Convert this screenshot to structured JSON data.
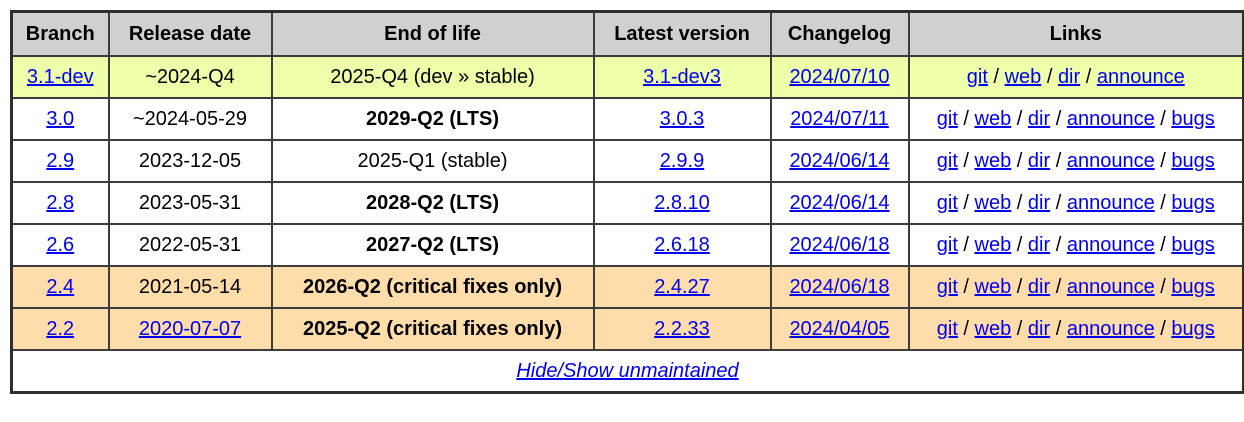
{
  "colors": {
    "header_bg": "#d0d0d0",
    "dev_row_bg": "#eeffaa",
    "stable_row_bg": "#ffffff",
    "unmaintained_row_bg": "#ffddaa",
    "link": "#0000ee",
    "border": "#3c3c3c",
    "text": "#000000"
  },
  "table": {
    "headers": [
      "Branch",
      "Release date",
      "End of life",
      "Latest version",
      "Changelog",
      "Links"
    ],
    "link_separator": " / ",
    "rows": [
      {
        "branch": "3.1-dev",
        "release_date": "~2024-Q4",
        "release_date_is_link": false,
        "end_of_life": "2025-Q4 (dev » stable)",
        "end_of_life_bold": false,
        "latest_version": "3.1-dev3",
        "changelog": "2024/07/10",
        "links": [
          "git",
          "web",
          "dir",
          "announce"
        ],
        "row_style": "dev"
      },
      {
        "branch": "3.0",
        "release_date": "~2024-05-29",
        "release_date_is_link": false,
        "end_of_life": "2029-Q2 (LTS)",
        "end_of_life_bold": true,
        "latest_version": "3.0.3",
        "changelog": "2024/07/11",
        "links": [
          "git",
          "web",
          "dir",
          "announce",
          "bugs"
        ],
        "row_style": "stable"
      },
      {
        "branch": "2.9",
        "release_date": "2023-12-05",
        "release_date_is_link": false,
        "end_of_life": "2025-Q1 (stable)",
        "end_of_life_bold": false,
        "latest_version": "2.9.9",
        "changelog": "2024/06/14",
        "links": [
          "git",
          "web",
          "dir",
          "announce",
          "bugs"
        ],
        "row_style": "stable"
      },
      {
        "branch": "2.8",
        "release_date": "2023-05-31",
        "release_date_is_link": false,
        "end_of_life": "2028-Q2 (LTS)",
        "end_of_life_bold": true,
        "latest_version": "2.8.10",
        "changelog": "2024/06/14",
        "links": [
          "git",
          "web",
          "dir",
          "announce",
          "bugs"
        ],
        "row_style": "stable"
      },
      {
        "branch": "2.6",
        "release_date": "2022-05-31",
        "release_date_is_link": false,
        "end_of_life": "2027-Q2 (LTS)",
        "end_of_life_bold": true,
        "latest_version": "2.6.18",
        "changelog": "2024/06/18",
        "links": [
          "git",
          "web",
          "dir",
          "announce",
          "bugs"
        ],
        "row_style": "stable"
      },
      {
        "branch": "2.4",
        "release_date": "2021-05-14",
        "release_date_is_link": false,
        "end_of_life": "2026-Q2 (critical fixes only)",
        "end_of_life_bold": true,
        "latest_version": "2.4.27",
        "changelog": "2024/06/18",
        "links": [
          "git",
          "web",
          "dir",
          "announce",
          "bugs"
        ],
        "row_style": "unmaintained"
      },
      {
        "branch": "2.2",
        "release_date": "2020-07-07",
        "release_date_is_link": true,
        "end_of_life": "2025-Q2 (critical fixes only)",
        "end_of_life_bold": true,
        "latest_version": "2.2.33",
        "changelog": "2024/04/05",
        "links": [
          "git",
          "web",
          "dir",
          "announce",
          "bugs"
        ],
        "row_style": "unmaintained"
      }
    ],
    "footer_link": "Hide/Show unmaintained"
  }
}
